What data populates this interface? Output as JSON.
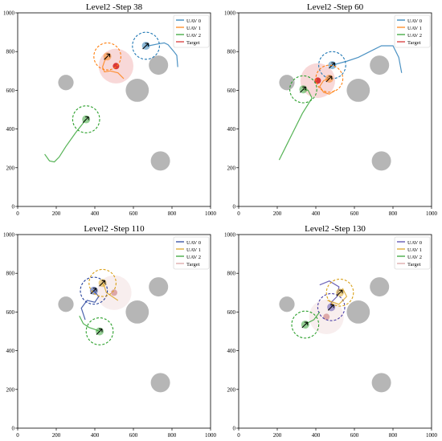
{
  "chart_data": [
    {
      "type": "scatter",
      "title": "Level2 -Step 38",
      "xlim": [
        0,
        1000
      ],
      "ylim": [
        0,
        1000
      ],
      "xticks": [
        0,
        200,
        400,
        600,
        800,
        1000
      ],
      "yticks": [
        0,
        200,
        400,
        600,
        800,
        1000
      ],
      "legend_position": "top-right",
      "legend": [
        "UAV 0",
        "UAV 1",
        "UAV 2",
        "Target"
      ],
      "colors": {
        "uav0": "#1f77b4",
        "uav1": "#ff7f0e",
        "uav2": "#2ca02c",
        "target": "#d62728",
        "obstacle": "#a9a9a9"
      },
      "obstacles": [
        {
          "x": 250,
          "y": 640,
          "r": 40
        },
        {
          "x": 620,
          "y": 600,
          "r": 60
        },
        {
          "x": 730,
          "y": 730,
          "r": 50
        },
        {
          "x": 740,
          "y": 235,
          "r": 50
        }
      ],
      "target": {
        "x": 510,
        "y": 725,
        "name": "Target"
      },
      "uavs": [
        {
          "name": "UAV 0",
          "x": 665,
          "y": 830,
          "path": [
            [
              830,
              720
            ],
            [
              825,
              780
            ],
            [
              810,
              800
            ],
            [
              780,
              835
            ],
            [
              760,
              845
            ],
            [
              730,
              840
            ],
            [
              690,
              832
            ],
            [
              665,
              830
            ]
          ]
        },
        {
          "name": "UAV 1",
          "x": 465,
          "y": 775,
          "path": [
            [
              550,
              660
            ],
            [
              520,
              690
            ],
            [
              480,
              700
            ],
            [
              450,
              695
            ],
            [
              440,
              720
            ],
            [
              450,
              750
            ],
            [
              465,
              775
            ]
          ]
        },
        {
          "name": "UAV 2",
          "x": 355,
          "y": 450,
          "path": [
            [
              140,
              270
            ],
            [
              165,
              235
            ],
            [
              190,
              230
            ],
            [
              215,
              255
            ],
            [
              250,
              310
            ],
            [
              300,
              380
            ],
            [
              355,
              450
            ]
          ]
        }
      ]
    },
    {
      "type": "scatter",
      "title": "Level2 -Step 60",
      "xlim": [
        0,
        1000
      ],
      "ylim": [
        0,
        1000
      ],
      "xticks": [
        0,
        200,
        400,
        600,
        800,
        1000
      ],
      "yticks": [
        0,
        200,
        400,
        600,
        800,
        1000
      ],
      "legend_position": "top-right",
      "legend": [
        "UAV 0",
        "UAV 1",
        "UAV 2",
        "Target"
      ],
      "colors": {
        "uav0": "#1f77b4",
        "uav1": "#ff7f0e",
        "uav2": "#2ca02c",
        "target": "#d62728",
        "obstacle": "#a9a9a9"
      },
      "obstacles": [
        {
          "x": 250,
          "y": 640,
          "r": 40
        },
        {
          "x": 620,
          "y": 600,
          "r": 60
        },
        {
          "x": 730,
          "y": 730,
          "r": 50
        },
        {
          "x": 740,
          "y": 235,
          "r": 50
        }
      ],
      "target": {
        "x": 410,
        "y": 650,
        "name": "Target"
      },
      "uavs": [
        {
          "name": "UAV 0",
          "x": 485,
          "y": 730,
          "path": [
            [
              845,
              690
            ],
            [
              830,
              770
            ],
            [
              800,
              830
            ],
            [
              740,
              830
            ],
            [
              680,
              800
            ],
            [
              620,
              770
            ],
            [
              560,
              750
            ],
            [
              485,
              730
            ]
          ]
        },
        {
          "name": "UAV 1",
          "x": 470,
          "y": 660,
          "path": [
            [
              500,
              600
            ],
            [
              470,
              580
            ],
            [
              440,
              590
            ],
            [
              420,
              620
            ],
            [
              440,
              650
            ],
            [
              470,
              660
            ]
          ]
        },
        {
          "name": "UAV 2",
          "x": 335,
          "y": 605,
          "path": [
            [
              210,
              240
            ],
            [
              240,
              300
            ],
            [
              280,
              380
            ],
            [
              330,
              480
            ],
            [
              380,
              560
            ],
            [
              360,
              600
            ],
            [
              335,
              605
            ]
          ]
        }
      ]
    },
    {
      "type": "scatter",
      "title": "Level2 -Step 110",
      "xlim": [
        0,
        1000
      ],
      "ylim": [
        0,
        1000
      ],
      "xticks": [
        0,
        200,
        400,
        600,
        800,
        1000
      ],
      "yticks": [
        0,
        200,
        400,
        600,
        800,
        1000
      ],
      "legend_position": "top-right",
      "legend": [
        "UAV 0",
        "UAV 1",
        "UAV 2",
        "Target"
      ],
      "colors": {
        "uav0": "#1f3c99",
        "uav1": "#d9a11a",
        "uav2": "#2ca02c",
        "target": "#d9a0a0",
        "obstacle": "#a9a9a9"
      },
      "obstacles": [
        {
          "x": 250,
          "y": 640,
          "r": 40
        },
        {
          "x": 620,
          "y": 600,
          "r": 60
        },
        {
          "x": 730,
          "y": 730,
          "r": 50
        },
        {
          "x": 740,
          "y": 235,
          "r": 50
        }
      ],
      "target": {
        "x": 500,
        "y": 700,
        "name": "Target"
      },
      "uavs": [
        {
          "name": "UAV 0",
          "x": 395,
          "y": 710,
          "path": [
            [
              350,
              560
            ],
            [
              330,
              620
            ],
            [
              360,
              660
            ],
            [
              400,
              650
            ],
            [
              420,
              680
            ],
            [
              395,
              710
            ]
          ]
        },
        {
          "name": "UAV 1",
          "x": 440,
          "y": 750,
          "path": [
            [
              520,
              660
            ],
            [
              490,
              680
            ],
            [
              460,
              700
            ],
            [
              450,
              730
            ],
            [
              440,
              750
            ]
          ]
        },
        {
          "name": "UAV 2",
          "x": 425,
          "y": 500,
          "path": [
            [
              320,
              580
            ],
            [
              340,
              540
            ],
            [
              370,
              520
            ],
            [
              400,
              510
            ],
            [
              425,
              500
            ]
          ]
        }
      ]
    },
    {
      "type": "scatter",
      "title": "Level2 -Step 130",
      "xlim": [
        0,
        1000
      ],
      "ylim": [
        0,
        1000
      ],
      "xticks": [
        0,
        200,
        400,
        600,
        800,
        1000
      ],
      "yticks": [
        0,
        200,
        400,
        600,
        800,
        1000
      ],
      "legend_position": "top-right",
      "legend": [
        "UAV 0",
        "UAV 1",
        "UAV 2",
        "Target"
      ],
      "colors": {
        "uav0": "#4b3fa8",
        "uav1": "#d9a11a",
        "uav2": "#2ca02c",
        "target": "#d9a0a0",
        "obstacle": "#a9a9a9"
      },
      "obstacles": [
        {
          "x": 250,
          "y": 640,
          "r": 40
        },
        {
          "x": 620,
          "y": 600,
          "r": 60
        },
        {
          "x": 730,
          "y": 730,
          "r": 50
        },
        {
          "x": 740,
          "y": 235,
          "r": 50
        }
      ],
      "target": {
        "x": 455,
        "y": 575,
        "name": "Target"
      },
      "uavs": [
        {
          "name": "UAV 0",
          "x": 480,
          "y": 625,
          "path": [
            [
              420,
              740
            ],
            [
              470,
              760
            ],
            [
              520,
              730
            ],
            [
              510,
              680
            ],
            [
              480,
              650
            ],
            [
              480,
              625
            ]
          ]
        },
        {
          "name": "UAV 1",
          "x": 525,
          "y": 700,
          "path": [
            [
              460,
              660
            ],
            [
              520,
              640
            ],
            [
              560,
              680
            ],
            [
              540,
              720
            ],
            [
              525,
              700
            ]
          ]
        },
        {
          "name": "UAV 2",
          "x": 345,
          "y": 535,
          "path": [
            [
              420,
              600
            ],
            [
              390,
              560
            ],
            [
              360,
              545
            ],
            [
              345,
              535
            ]
          ]
        }
      ]
    }
  ]
}
